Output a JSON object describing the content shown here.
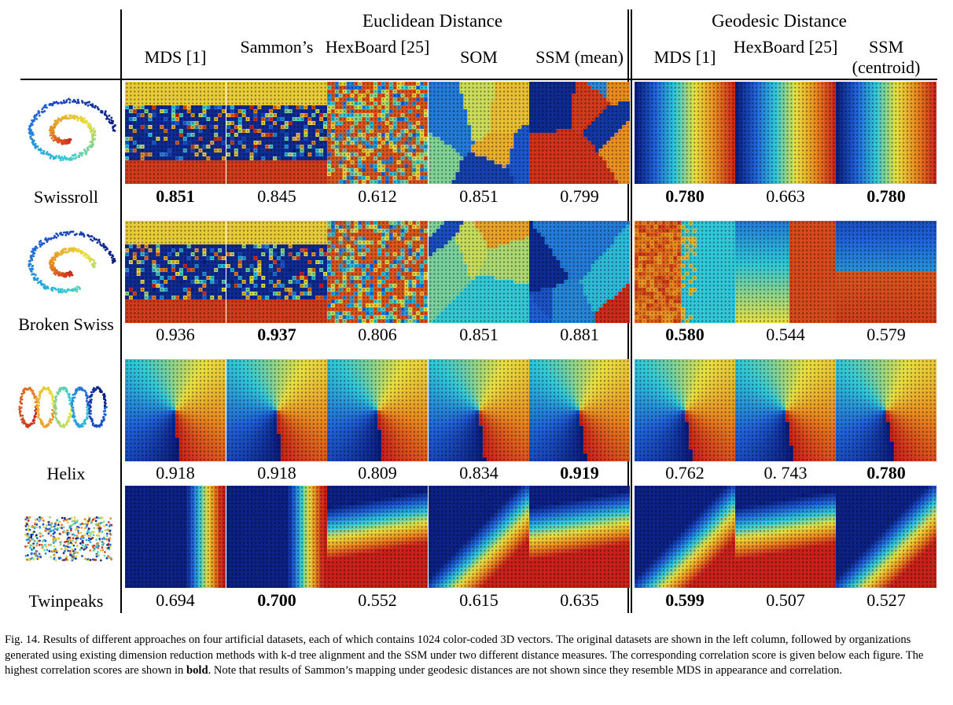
{
  "groups": {
    "euclidean": "Euclidean Distance",
    "geodesic": "Geodesic Distance"
  },
  "columns": [
    {
      "label": "MDS [1]"
    },
    {
      "label": "Sammon’s"
    },
    {
      "label": "HexBoard [25]"
    },
    {
      "label": "SOM"
    },
    {
      "label": "SSM (mean)"
    },
    {
      "label": "MDS [1]"
    },
    {
      "label": "HexBoard [25]"
    },
    {
      "label": "SSM (centroid)"
    }
  ],
  "rows": [
    {
      "label": "Swissroll",
      "scores": [
        "0.851",
        "0.845",
        "0.612",
        "0.851",
        "0.799",
        "0.780",
        "0.663",
        "0.780"
      ],
      "best": [
        true,
        false,
        false,
        false,
        false,
        true,
        false,
        true
      ]
    },
    {
      "label": "Broken Swiss",
      "scores": [
        "0.936",
        "0.937",
        "0.806",
        "0.851",
        "0.881",
        "0.580",
        "0.544",
        "0.579"
      ],
      "best": [
        false,
        true,
        false,
        false,
        false,
        true,
        false,
        false
      ]
    },
    {
      "label": "Helix",
      "scores": [
        "0.918",
        "0.918",
        "0.809",
        "0.834",
        "0.919",
        "0.762",
        "0. 743",
        "0.780"
      ],
      "best": [
        false,
        false,
        false,
        false,
        true,
        false,
        false,
        true
      ]
    },
    {
      "label": "Twinpeaks",
      "scores": [
        "0.694",
        "0.700",
        "0.552",
        "0.615",
        "0.635",
        "0.599",
        "0.507",
        "0.527"
      ],
      "best": [
        false,
        true,
        false,
        false,
        false,
        true,
        false,
        false
      ]
    }
  ],
  "caption": {
    "text_before": "Fig. 14.   Results of different approaches on four artificial datasets, each of which contains 1024 color-coded 3D vectors. The original datasets are shown in the left column, followed by organizations generated using existing dimension reduction methods with k-d tree alignment and the SSM under two different distance measures. The corresponding correlation score is given below each figure. The highest correlation scores are shown in ",
    "bold_word": "bold",
    "text_after": ". Note that results of Sammon’s mapping under geodesic distances are not shown since they resemble MDS in appearance and correlation."
  },
  "colors": {
    "dark_blue": "#0a1a7a",
    "blue": "#1f5fd6",
    "cyan": "#30c8d8",
    "yellow": "#e8e040",
    "orange": "#e88a20",
    "red": "#c8201a"
  }
}
